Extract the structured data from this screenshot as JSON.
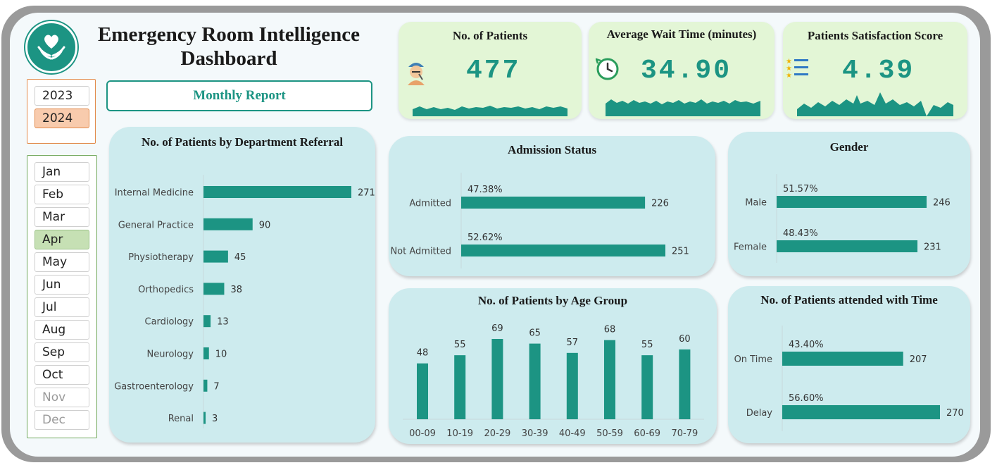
{
  "header": {
    "title_line1": "Emergency Room Intelligence",
    "title_line2": "Dashboard",
    "report_button": "Monthly Report",
    "logo_icon": "heart-hands-icon"
  },
  "colors": {
    "accent": "#1c9483",
    "panel": "#cdebee",
    "kpi": "#e3f6d6"
  },
  "year_slicer": {
    "items": [
      {
        "label": "2023",
        "state": "normal"
      },
      {
        "label": "2024",
        "state": "selected"
      }
    ]
  },
  "month_slicer": {
    "items": [
      {
        "label": "Jan",
        "state": "normal"
      },
      {
        "label": "Feb",
        "state": "normal"
      },
      {
        "label": "Mar",
        "state": "normal"
      },
      {
        "label": "Apr",
        "state": "selected"
      },
      {
        "label": "May",
        "state": "normal"
      },
      {
        "label": "Jun",
        "state": "normal"
      },
      {
        "label": "Jul",
        "state": "normal"
      },
      {
        "label": "Aug",
        "state": "normal"
      },
      {
        "label": "Sep",
        "state": "normal"
      },
      {
        "label": "Oct",
        "state": "normal"
      },
      {
        "label": "Nov",
        "state": "disabled"
      },
      {
        "label": "Dec",
        "state": "disabled"
      }
    ]
  },
  "kpis": {
    "patients": {
      "title": "No. of Patients",
      "value": "477",
      "icon": "patient-icon"
    },
    "wait": {
      "title": "Average Wait Time (minutes)",
      "value": "34.90",
      "icon": "clock-icon"
    },
    "satisfaction": {
      "title": "Patients Satisfaction Score",
      "value": "4.39",
      "icon": "rating-list-icon"
    }
  },
  "chart_data": [
    {
      "id": "department",
      "type": "bar",
      "orientation": "horizontal",
      "title": "No. of Patients by Department Referral",
      "categories": [
        "Internal Medicine",
        "General Practice",
        "Physiotherapy",
        "Orthopedics",
        "Cardiology",
        "Neurology",
        "Gastroenterology",
        "Renal"
      ],
      "values": [
        271,
        90,
        45,
        38,
        13,
        10,
        7,
        3
      ],
      "xlim": [
        0,
        271
      ]
    },
    {
      "id": "admission",
      "type": "bar",
      "orientation": "horizontal",
      "title": "Admission Status",
      "categories": [
        "Admitted",
        "Not Admitted"
      ],
      "values": [
        226,
        251
      ],
      "percent_labels": [
        "47.38%",
        "52.62%"
      ],
      "xlim": [
        0,
        251
      ]
    },
    {
      "id": "gender",
      "type": "bar",
      "orientation": "horizontal",
      "title": "Gender",
      "categories": [
        "Male",
        "Female"
      ],
      "values": [
        246,
        231
      ],
      "percent_labels": [
        "51.57%",
        "48.43%"
      ],
      "xlim": [
        0,
        246
      ]
    },
    {
      "id": "age",
      "type": "bar",
      "orientation": "vertical",
      "title": "No. of Patients by Age Group",
      "categories": [
        "00-09",
        "10-19",
        "20-29",
        "30-39",
        "40-49",
        "50-59",
        "60-69",
        "70-79"
      ],
      "values": [
        48,
        55,
        69,
        65,
        57,
        68,
        55,
        60
      ],
      "ylim": [
        0,
        69
      ]
    },
    {
      "id": "attended",
      "type": "bar",
      "orientation": "horizontal",
      "title": "No. of Patients attended with Time",
      "categories": [
        "On Time",
        "Delay"
      ],
      "values": [
        207,
        270
      ],
      "percent_labels": [
        "43.40%",
        "56.60%"
      ],
      "xlim": [
        0,
        270
      ]
    }
  ]
}
